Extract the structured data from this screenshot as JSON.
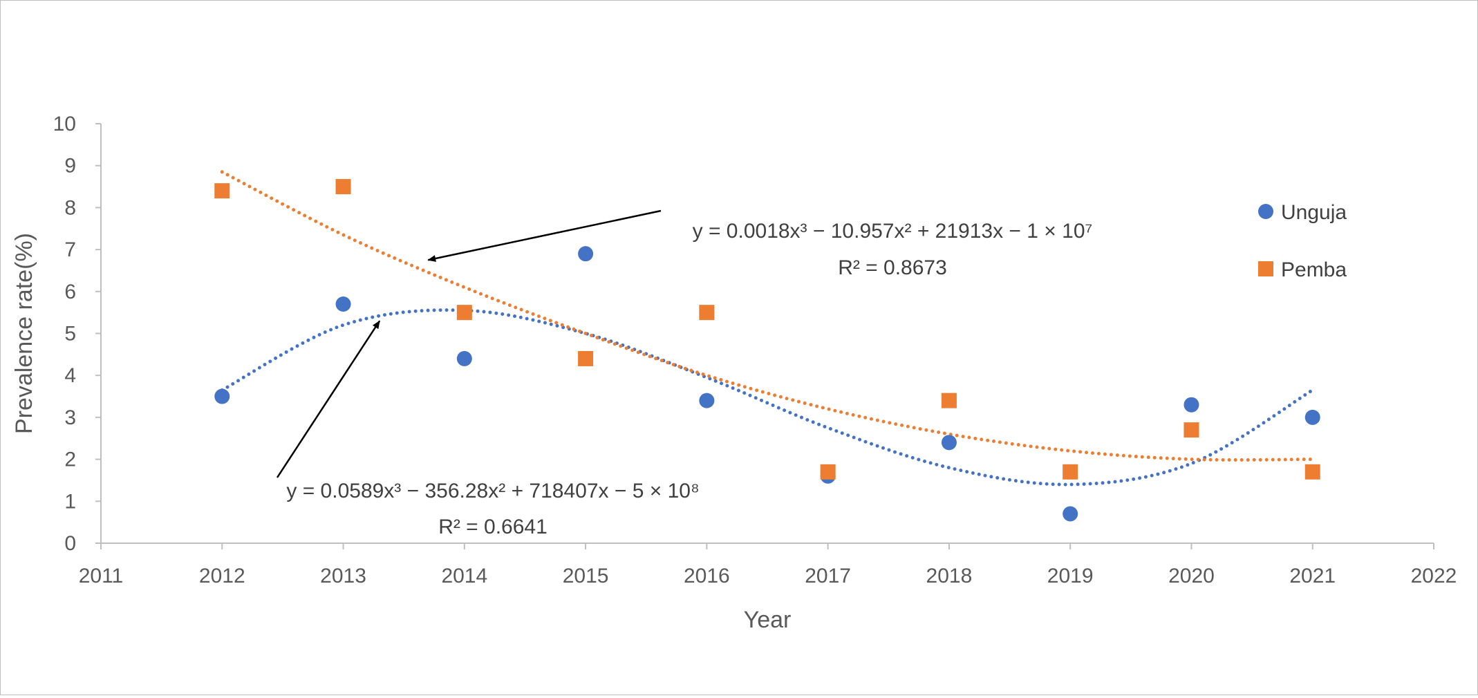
{
  "chart_data": {
    "type": "scatter",
    "title": "",
    "xlabel": "Year",
    "ylabel": "Prevalence rate(%)",
    "xlim": [
      2011,
      2022
    ],
    "ylim": [
      0,
      10
    ],
    "x_ticks": [
      "2011",
      "2012",
      "2013",
      "2014",
      "2015",
      "2016",
      "2017",
      "2018",
      "2019",
      "2020",
      "2021",
      "2022"
    ],
    "y_ticks": [
      "0",
      "1",
      "2",
      "3",
      "4",
      "5",
      "6",
      "7",
      "8",
      "9",
      "10"
    ],
    "grid": false,
    "legend_position": "right",
    "series": [
      {
        "name": "Unguja",
        "marker": "circle",
        "color": "#4472C4",
        "x": [
          2012,
          2013,
          2014,
          2015,
          2016,
          2017,
          2018,
          2019,
          2020,
          2021
        ],
        "y": [
          3.5,
          5.7,
          4.4,
          6.9,
          3.4,
          1.6,
          2.4,
          0.7,
          3.3,
          3.0
        ],
        "trendline": {
          "type": "polynomial",
          "order": 3,
          "style": "dotted",
          "equation": "y = 0.0589x³ − 356.28x² + 718407x − 5 × 10⁸",
          "r_squared": "R² = 0.6641",
          "curve_x": [
            2012,
            2013,
            2014,
            2015,
            2016,
            2017,
            2018,
            2019,
            2020,
            2021
          ],
          "curve_y": [
            3.65,
            5.2,
            5.55,
            5.0,
            3.95,
            2.75,
            1.8,
            1.4,
            1.9,
            3.65
          ]
        }
      },
      {
        "name": "Pemba",
        "marker": "square",
        "color": "#ED7D31",
        "x": [
          2012,
          2013,
          2014,
          2015,
          2016,
          2017,
          2018,
          2019,
          2020,
          2021
        ],
        "y": [
          8.4,
          8.5,
          5.5,
          4.4,
          5.5,
          1.7,
          3.4,
          1.7,
          2.7,
          1.7
        ],
        "trendline": {
          "type": "polynomial",
          "order": 3,
          "style": "dotted",
          "equation": "y = 0.0018x³ − 10.957x² + 21913x − 1 × 10⁷",
          "r_squared": "R² = 0.8673",
          "curve_x": [
            2012,
            2013,
            2014,
            2015,
            2016,
            2017,
            2018,
            2019,
            2020,
            2021
          ],
          "curve_y": [
            8.85,
            7.35,
            6.1,
            5.0,
            4.0,
            3.2,
            2.6,
            2.2,
            2.0,
            2.0
          ]
        }
      }
    ],
    "annotations": [
      {
        "series": "Pemba",
        "text_lines": [
          "y = 0.0018x³ − 10.957x² + 21913x − 1 × 10⁷",
          "R² = 0.8673"
        ],
        "arrow_to": [
          2013.7,
          6.75
        ]
      },
      {
        "series": "Unguja",
        "text_lines": [
          "y = 0.0589x³ − 356.28x² + 718407x − 5 × 10⁸",
          "R² = 0.6641"
        ],
        "arrow_to": [
          2013.3,
          5.3
        ]
      }
    ]
  }
}
